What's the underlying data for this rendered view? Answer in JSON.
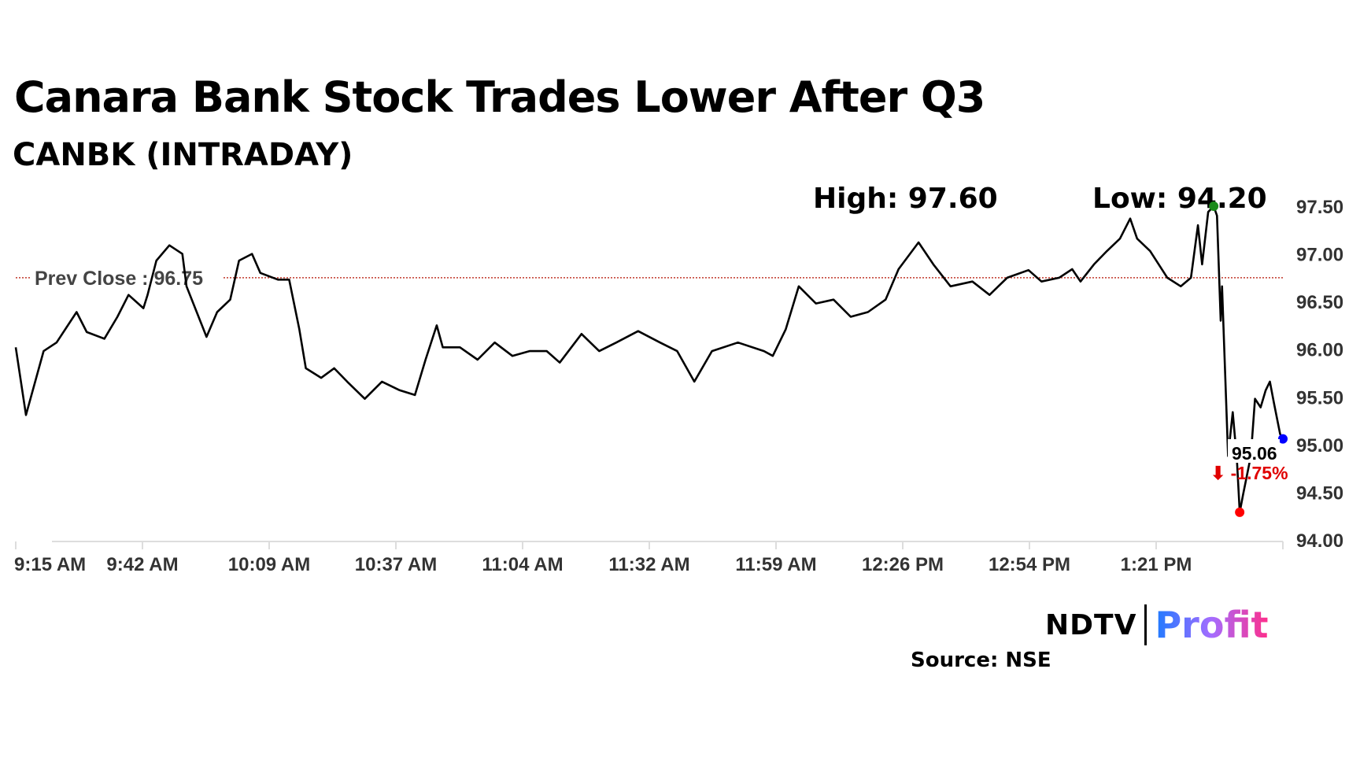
{
  "header": {
    "title": "Canara Bank Stock Trades Lower After Q3",
    "subtitle": "CANBK (INTRADAY)"
  },
  "footer": {
    "source": "Source: NSE",
    "logo_left": "NDTV",
    "logo_right": "Profit"
  },
  "chart_data": {
    "type": "line",
    "title": "Canara Bank Stock Trades Lower After Q3",
    "subtitle": "CANBK (INTRADAY)",
    "xlabel": "",
    "ylabel": "",
    "x_unit": "minutes since 9:15 AM",
    "x_ticks": [
      {
        "label": "9:15 AM",
        "minute": 0
      },
      {
        "label": "9:42 AM",
        "minute": 27.3
      },
      {
        "label": "10:09 AM",
        "minute": 54.6
      },
      {
        "label": "10:37 AM",
        "minute": 81.9
      },
      {
        "label": "11:04 AM",
        "minute": 109.2
      },
      {
        "label": "11:32 AM",
        "minute": 136.5
      },
      {
        "label": "11:59 AM",
        "minute": 163.8
      },
      {
        "label": "12:26 PM",
        "minute": 191.1
      },
      {
        "label": "12:54 PM",
        "minute": 218.4
      },
      {
        "label": "1:21 PM",
        "minute": 245.7
      }
    ],
    "xlim": [
      0,
      273
    ],
    "ylim": [
      94.0,
      97.5
    ],
    "y_ticks": [
      "94.00",
      "94.50",
      "95.00",
      "95.50",
      "96.00",
      "96.50",
      "97.00",
      "97.50"
    ],
    "prev_close": {
      "label": "Prev Close : 96.75",
      "value": 96.75,
      "color": "#c0392b"
    },
    "high_label": "High: 97.60",
    "low_label": "Low: 94.20",
    "high_point": {
      "minute": 258.1,
      "price": 97.5,
      "color": "#1a8a1a"
    },
    "low_point": {
      "minute": 263.7,
      "price": 94.29,
      "color": "#ff0000"
    },
    "last_point": {
      "minute": 273,
      "price": 95.06,
      "color": "#0000ff"
    },
    "last_value_label": "95.06",
    "change_label": "⬇ -1.75%",
    "change_color": "#e00000",
    "series": [
      {
        "name": "CANBK",
        "color": "#000000",
        "x": [
          0,
          2.2,
          6,
          8.8,
          13.1,
          15.3,
          19.1,
          21.9,
          24.3,
          27.5,
          28.4,
          30.3,
          33.1,
          35.9,
          36.8,
          41.1,
          43.4,
          46.2,
          48.1,
          50.9,
          52.7,
          56.5,
          58.9,
          61.1,
          62.5,
          65.8,
          68.6,
          71.4,
          75.2,
          78.9,
          82.7,
          86,
          88.3,
          90.7,
          92,
          95.7,
          99.5,
          103.2,
          107,
          110.7,
          114.4,
          117.2,
          121.9,
          125.7,
          129.4,
          134.1,
          138.8,
          142.5,
          146.2,
          150,
          155.6,
          161.2,
          163.1,
          165.9,
          168.7,
          172.4,
          176.2,
          179.9,
          183.6,
          187.4,
          190.2,
          194.5,
          197.7,
          201.4,
          206.1,
          209.8,
          213.6,
          218.2,
          221,
          224.8,
          227.6,
          229.4,
          232.3,
          235.1,
          237.9,
          240.1,
          241.6,
          244.4,
          248.1,
          251,
          253.2,
          254.7,
          255.6,
          256.9,
          258.1,
          258.8,
          259.6,
          259.9,
          261.2,
          262.2,
          263.1,
          263.7,
          264.4,
          266.1,
          267,
          268.2,
          269.3,
          270.2,
          271.1,
          272.4,
          273
        ],
        "values": [
          96.02,
          95.31,
          95.98,
          96.07,
          96.39,
          96.18,
          96.11,
          96.34,
          96.57,
          96.43,
          96.57,
          96.93,
          97.09,
          97.0,
          96.66,
          96.13,
          96.39,
          96.52,
          96.93,
          97.0,
          96.8,
          96.73,
          96.73,
          96.21,
          95.8,
          95.7,
          95.8,
          95.66,
          95.48,
          95.66,
          95.57,
          95.52,
          95.89,
          96.25,
          96.02,
          96.02,
          95.89,
          96.07,
          95.93,
          95.98,
          95.98,
          95.86,
          96.16,
          95.98,
          96.07,
          96.19,
          96.07,
          95.98,
          95.66,
          95.98,
          96.07,
          95.98,
          95.93,
          96.21,
          96.66,
          96.48,
          96.52,
          96.34,
          96.39,
          96.52,
          96.84,
          97.12,
          96.89,
          96.66,
          96.71,
          96.57,
          96.75,
          96.83,
          96.71,
          96.75,
          96.84,
          96.71,
          96.89,
          97.03,
          97.16,
          97.37,
          97.16,
          97.03,
          96.75,
          96.66,
          96.75,
          97.3,
          96.89,
          97.44,
          97.5,
          97.4,
          96.3,
          96.66,
          94.88,
          95.34,
          94.84,
          94.29,
          94.47,
          94.88,
          95.48,
          95.39,
          95.57,
          95.66,
          95.43,
          95.11,
          95.06
        ]
      }
    ]
  }
}
